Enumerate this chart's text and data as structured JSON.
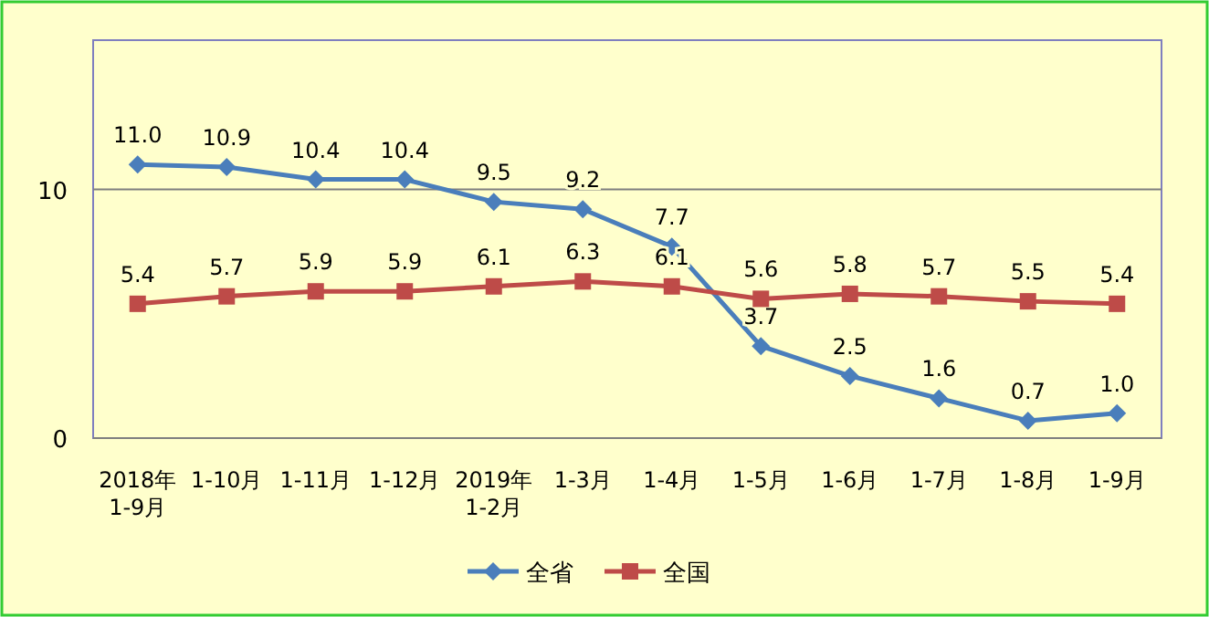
{
  "chart_data": {
    "type": "line",
    "categories": [
      "2018年\n1-9月",
      "1-10月",
      "1-11月",
      "1-12月",
      "2019年\n1-2月",
      "1-3月",
      "1-4月",
      "1-5月",
      "1-6月",
      "1-7月",
      "1-8月",
      "1-9月"
    ],
    "series": [
      {
        "name": "全省",
        "color": "#4a7ebb",
        "marker": "diamond",
        "values": [
          11.0,
          10.9,
          10.4,
          10.4,
          9.5,
          9.2,
          7.7,
          3.7,
          2.5,
          1.6,
          0.7,
          1.0
        ],
        "value_labels": [
          "11.0",
          "10.9",
          "10.4",
          "10.4",
          "9.5",
          "9.2",
          "7.7",
          "3.7",
          "2.5",
          "1.6",
          "0.7",
          "1.0"
        ]
      },
      {
        "name": "全国",
        "color": "#be4b48",
        "marker": "square",
        "values": [
          5.4,
          5.7,
          5.9,
          5.9,
          6.1,
          6.3,
          6.1,
          5.6,
          5.8,
          5.7,
          5.5,
          5.4
        ],
        "value_labels": [
          "5.4",
          "5.7",
          "5.9",
          "5.9",
          "6.1",
          "6.3",
          "6.1",
          "5.6",
          "5.8",
          "5.7",
          "5.5",
          "5.4"
        ]
      }
    ],
    "ylim": [
      0,
      16
    ],
    "yticks": [
      0,
      10
    ],
    "grid": "y",
    "legend": "bottom"
  }
}
